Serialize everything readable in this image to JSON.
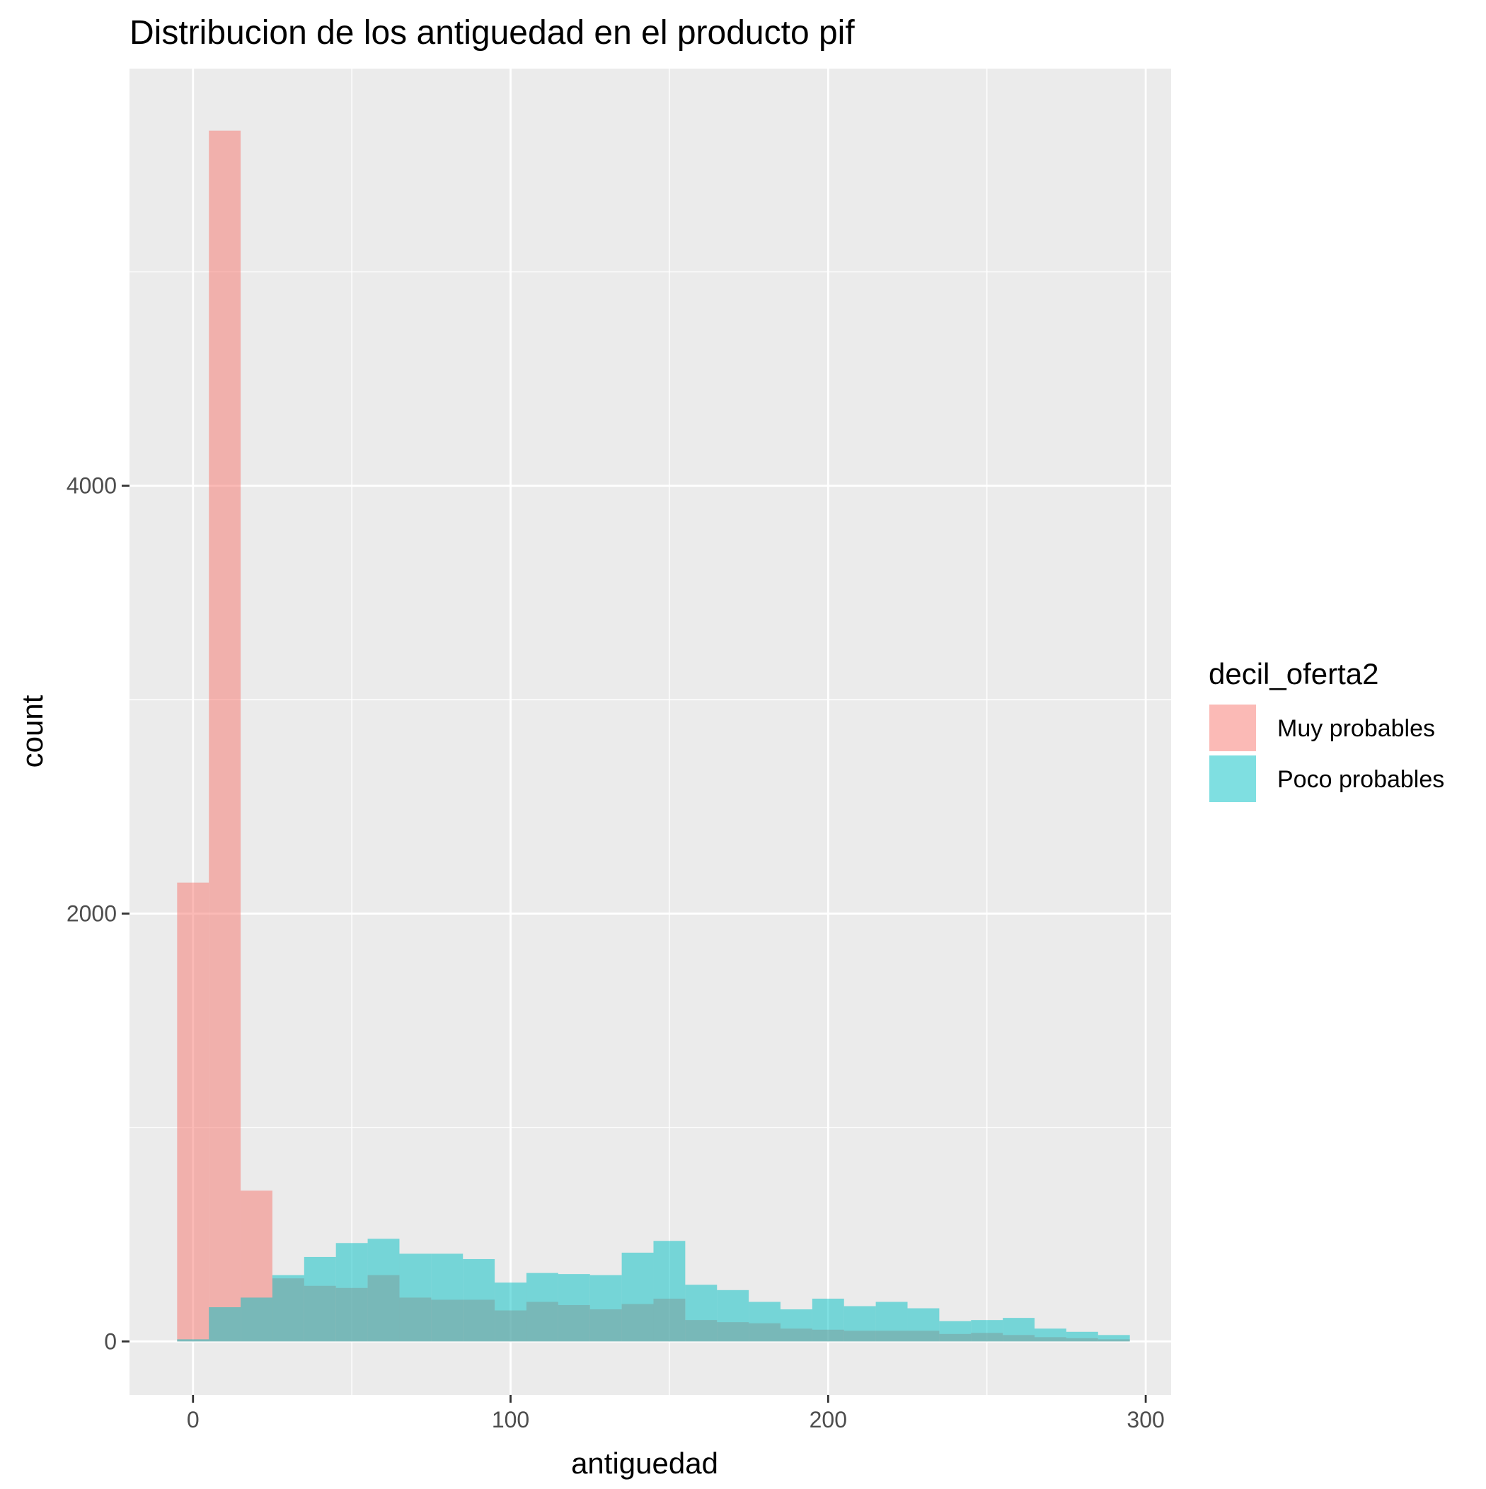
{
  "chart_data": {
    "type": "bar",
    "title": "Distribucion de los  antiguedad en el producto pif",
    "xlabel": "antiguedad",
    "ylabel": "count",
    "xlim": [
      -20,
      308
    ],
    "ylim": [
      -250,
      5950
    ],
    "x_ticks": [
      0,
      100,
      200,
      300
    ],
    "y_ticks": [
      0,
      2000,
      4000
    ],
    "grid": true,
    "legend": {
      "title": "decil_oferta2",
      "position": "right",
      "entries": [
        "Muy probables",
        "Poco probables"
      ]
    },
    "bin_width": 10,
    "series": [
      {
        "name": "Muy probables",
        "color": "#F8766D",
        "alpha": 0.5,
        "bins": [
          {
            "x0": -5,
            "x1": 5,
            "y": 2145
          },
          {
            "x0": 5,
            "x1": 15,
            "y": 5660
          },
          {
            "x0": 15,
            "x1": 25,
            "y": 705
          },
          {
            "x0": 25,
            "x1": 35,
            "y": 295
          },
          {
            "x0": 35,
            "x1": 45,
            "y": 260
          },
          {
            "x0": 45,
            "x1": 55,
            "y": 250
          },
          {
            "x0": 55,
            "x1": 65,
            "y": 310
          },
          {
            "x0": 65,
            "x1": 75,
            "y": 205
          },
          {
            "x0": 75,
            "x1": 85,
            "y": 195
          },
          {
            "x0": 85,
            "x1": 95,
            "y": 195
          },
          {
            "x0": 95,
            "x1": 105,
            "y": 145
          },
          {
            "x0": 105,
            "x1": 115,
            "y": 185
          },
          {
            "x0": 115,
            "x1": 125,
            "y": 170
          },
          {
            "x0": 125,
            "x1": 135,
            "y": 150
          },
          {
            "x0": 135,
            "x1": 145,
            "y": 175
          },
          {
            "x0": 145,
            "x1": 155,
            "y": 200
          },
          {
            "x0": 155,
            "x1": 165,
            "y": 100
          },
          {
            "x0": 165,
            "x1": 175,
            "y": 90
          },
          {
            "x0": 175,
            "x1": 185,
            "y": 85
          },
          {
            "x0": 185,
            "x1": 195,
            "y": 60
          },
          {
            "x0": 195,
            "x1": 205,
            "y": 55
          },
          {
            "x0": 205,
            "x1": 215,
            "y": 50
          },
          {
            "x0": 215,
            "x1": 225,
            "y": 50
          },
          {
            "x0": 225,
            "x1": 235,
            "y": 50
          },
          {
            "x0": 235,
            "x1": 245,
            "y": 35
          },
          {
            "x0": 245,
            "x1": 255,
            "y": 40
          },
          {
            "x0": 255,
            "x1": 265,
            "y": 30
          },
          {
            "x0": 265,
            "x1": 275,
            "y": 20
          },
          {
            "x0": 275,
            "x1": 285,
            "y": 15
          },
          {
            "x0": 285,
            "x1": 295,
            "y": 10
          }
        ]
      },
      {
        "name": "Poco probables",
        "color": "#00BFC4",
        "alpha": 0.5,
        "bins": [
          {
            "x0": -5,
            "x1": 5,
            "y": 10
          },
          {
            "x0": 5,
            "x1": 15,
            "y": 160
          },
          {
            "x0": 15,
            "x1": 25,
            "y": 205
          },
          {
            "x0": 25,
            "x1": 35,
            "y": 310
          },
          {
            "x0": 35,
            "x1": 45,
            "y": 395
          },
          {
            "x0": 45,
            "x1": 55,
            "y": 460
          },
          {
            "x0": 55,
            "x1": 65,
            "y": 480
          },
          {
            "x0": 65,
            "x1": 75,
            "y": 410
          },
          {
            "x0": 75,
            "x1": 85,
            "y": 410
          },
          {
            "x0": 85,
            "x1": 95,
            "y": 385
          },
          {
            "x0": 95,
            "x1": 105,
            "y": 275
          },
          {
            "x0": 105,
            "x1": 115,
            "y": 320
          },
          {
            "x0": 115,
            "x1": 125,
            "y": 315
          },
          {
            "x0": 125,
            "x1": 135,
            "y": 310
          },
          {
            "x0": 135,
            "x1": 145,
            "y": 415
          },
          {
            "x0": 145,
            "x1": 155,
            "y": 470
          },
          {
            "x0": 155,
            "x1": 165,
            "y": 265
          },
          {
            "x0": 165,
            "x1": 175,
            "y": 240
          },
          {
            "x0": 175,
            "x1": 185,
            "y": 185
          },
          {
            "x0": 185,
            "x1": 195,
            "y": 150
          },
          {
            "x0": 195,
            "x1": 205,
            "y": 200
          },
          {
            "x0": 205,
            "x1": 215,
            "y": 165
          },
          {
            "x0": 215,
            "x1": 225,
            "y": 185
          },
          {
            "x0": 225,
            "x1": 235,
            "y": 155
          },
          {
            "x0": 235,
            "x1": 245,
            "y": 95
          },
          {
            "x0": 245,
            "x1": 255,
            "y": 100
          },
          {
            "x0": 255,
            "x1": 265,
            "y": 110
          },
          {
            "x0": 265,
            "x1": 275,
            "y": 60
          },
          {
            "x0": 275,
            "x1": 285,
            "y": 45
          },
          {
            "x0": 285,
            "x1": 295,
            "y": 30
          }
        ]
      }
    ]
  }
}
